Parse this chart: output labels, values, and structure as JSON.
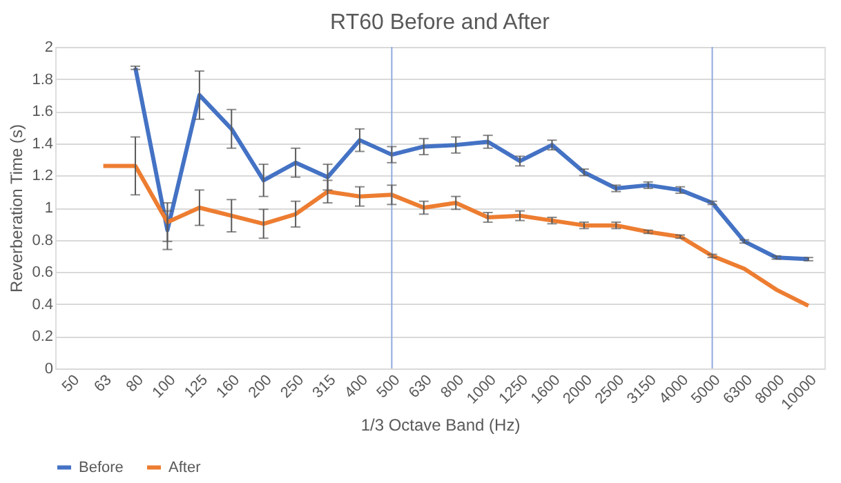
{
  "chart_data": {
    "type": "line",
    "title": "RT60 Before and After",
    "xlabel": "1/3 Octave Band (Hz)",
    "ylabel": "Reverberation Time (s)",
    "categories": [
      "50",
      "63",
      "80",
      "100",
      "125",
      "160",
      "200",
      "250",
      "315",
      "400",
      "500",
      "630",
      "800",
      "1000",
      "1250",
      "1600",
      "2000",
      "2500",
      "3150",
      "4000",
      "5000",
      "6300",
      "8000",
      "10000"
    ],
    "series": [
      {
        "name": "Before",
        "color": "#4472c4",
        "values": [
          null,
          null,
          1.87,
          0.86,
          1.7,
          1.49,
          1.17,
          1.28,
          1.19,
          1.42,
          1.33,
          1.38,
          1.39,
          1.41,
          1.29,
          1.39,
          1.22,
          1.12,
          1.14,
          1.11,
          1.03,
          0.79,
          0.69,
          0.68
        ],
        "errors": [
          null,
          null,
          0.01,
          0.12,
          0.15,
          0.12,
          0.1,
          0.09,
          0.08,
          0.07,
          0.05,
          0.05,
          0.05,
          0.04,
          0.03,
          0.03,
          0.02,
          0.02,
          0.02,
          0.02,
          0.01,
          0.01,
          0.01,
          0.01
        ]
      },
      {
        "name": "After",
        "color": "#ed7d31",
        "values": [
          null,
          1.26,
          1.26,
          0.91,
          1.0,
          0.95,
          0.9,
          0.96,
          1.1,
          1.07,
          1.08,
          1.0,
          1.03,
          0.94,
          0.95,
          0.92,
          0.89,
          0.89,
          0.85,
          0.82,
          0.7,
          0.62,
          0.49,
          0.39
        ],
        "errors": [
          null,
          null,
          0.18,
          0.12,
          0.11,
          0.1,
          0.09,
          0.08,
          0.07,
          0.06,
          0.06,
          0.04,
          0.04,
          0.03,
          0.03,
          0.02,
          0.02,
          0.02,
          0.01,
          0.01,
          0.01,
          null,
          null,
          null
        ]
      }
    ],
    "ylim": [
      0,
      2
    ],
    "yticks": [
      0,
      0.2,
      0.4,
      0.6,
      0.8,
      1,
      1.2,
      1.4,
      1.6,
      1.8,
      2
    ],
    "ref_lines": [
      {
        "axis": "x",
        "value": "500",
        "color": "#8faadc"
      },
      {
        "axis": "x",
        "value": "5000",
        "color": "#8faadc"
      }
    ],
    "grid": "y",
    "legend": "bottom",
    "marker": "none",
    "line_style": "solid"
  }
}
